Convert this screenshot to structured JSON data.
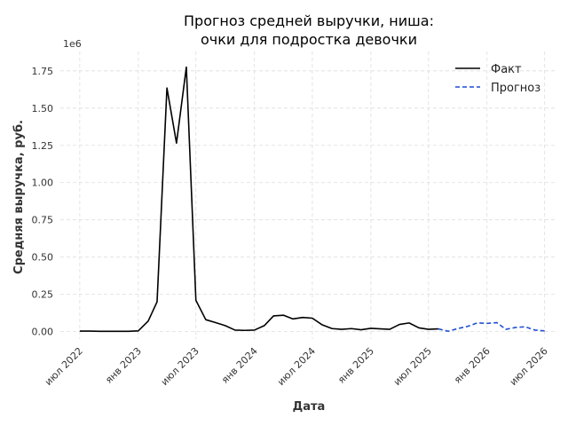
{
  "chart_data": {
    "type": "line",
    "title": "Прогноз средней выручки, ниша:\nочки для подростка девочки",
    "xlabel": "Дата",
    "ylabel": "Средняя выручка, руб.",
    "y_offset_label": "1e6",
    "ylim": [
      -0.05,
      1.88
    ],
    "xlim": [
      "2022-05-01",
      "2026-08-10"
    ],
    "y_ticks": [
      0.0,
      0.25,
      0.5,
      0.75,
      1.0,
      1.25,
      1.5,
      1.75
    ],
    "y_tick_labels": [
      "0.00",
      "0.25",
      "0.50",
      "0.75",
      "1.00",
      "1.25",
      "1.50",
      "1.75"
    ],
    "x_ticks": [
      "2022-07-01",
      "2023-01-01",
      "2023-07-01",
      "2024-01-01",
      "2024-07-01",
      "2025-01-01",
      "2025-07-01",
      "2026-01-01",
      "2026-07-01"
    ],
    "x_tick_labels": [
      "июл 2022",
      "янв 2023",
      "июл 2023",
      "янв 2024",
      "июл 2024",
      "янв 2025",
      "июл 2025",
      "янв 2026",
      "июл 2026"
    ],
    "grid": true,
    "legend_position": "top-right",
    "series": [
      {
        "name": "Факт",
        "color": "#000000",
        "style": "solid",
        "x": [
          "2022-07-01",
          "2022-08-01",
          "2022-09-01",
          "2022-10-01",
          "2022-11-01",
          "2022-12-01",
          "2023-01-01",
          "2023-02-01",
          "2023-03-01",
          "2023-04-01",
          "2023-05-01",
          "2023-06-01",
          "2023-07-01",
          "2023-08-01",
          "2023-09-01",
          "2023-10-01",
          "2023-11-01",
          "2023-12-01",
          "2024-01-01",
          "2024-02-01",
          "2024-03-01",
          "2024-04-01",
          "2024-05-01",
          "2024-06-01",
          "2024-07-01",
          "2024-08-01",
          "2024-09-01",
          "2024-10-01",
          "2024-11-01",
          "2024-12-01",
          "2025-01-01",
          "2025-02-01",
          "2025-03-01",
          "2025-04-01",
          "2025-05-01",
          "2025-06-01",
          "2025-07-01",
          "2025-08-01"
        ],
        "y": [
          0.003,
          0.003,
          0.002,
          0.002,
          0.002,
          0.002,
          0.005,
          0.07,
          0.2,
          1.635,
          1.265,
          1.775,
          0.21,
          0.08,
          0.06,
          0.04,
          0.01,
          0.008,
          0.01,
          0.04,
          0.105,
          0.11,
          0.085,
          0.095,
          0.09,
          0.045,
          0.02,
          0.015,
          0.02,
          0.012,
          0.022,
          0.018,
          0.015,
          0.048,
          0.058,
          0.025,
          0.015,
          0.018
        ]
      },
      {
        "name": "Прогноз",
        "color": "#1f4fd1",
        "style": "dashed",
        "x": [
          "2025-08-01",
          "2025-09-01",
          "2025-10-01",
          "2025-11-01",
          "2025-12-01",
          "2026-01-01",
          "2026-02-01",
          "2026-03-01",
          "2026-04-01",
          "2026-05-01",
          "2026-06-01",
          "2026-07-01"
        ],
        "y": [
          0.018,
          0.002,
          0.02,
          0.035,
          0.058,
          0.055,
          0.06,
          0.015,
          0.028,
          0.032,
          0.01,
          0.005
        ]
      }
    ]
  }
}
